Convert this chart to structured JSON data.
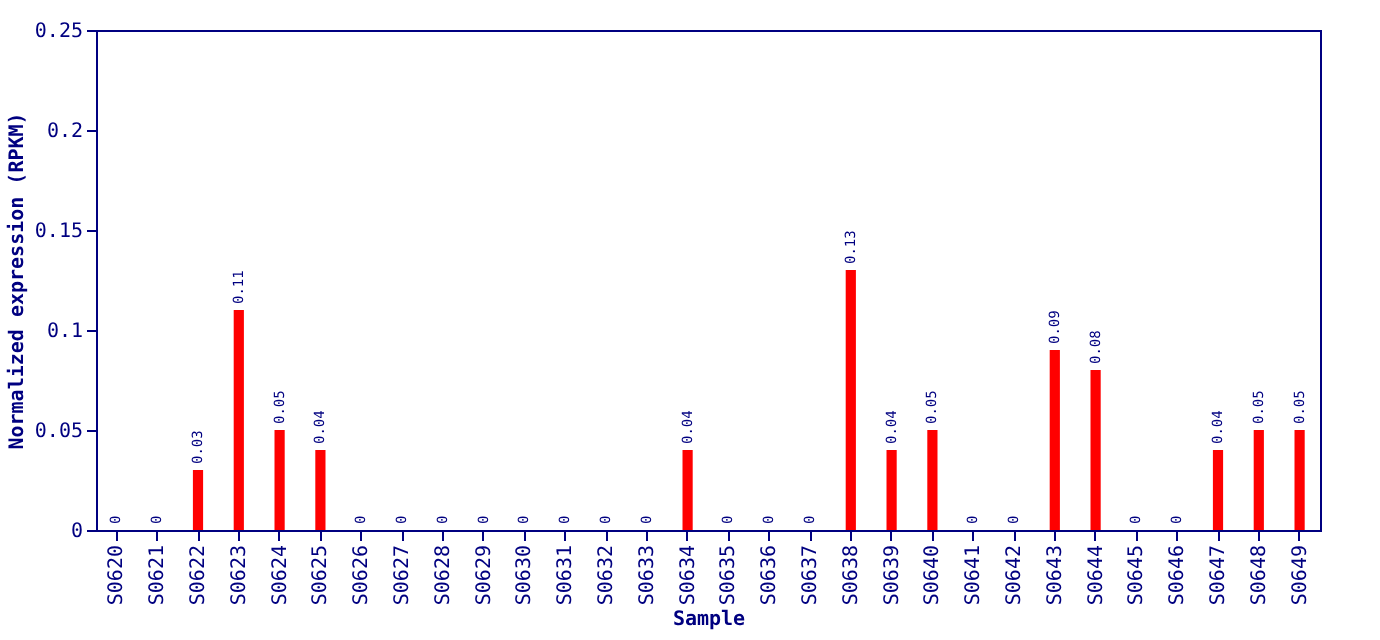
{
  "chart_data": {
    "type": "bar",
    "xlabel": "Sample",
    "ylabel": "Normalized expression (RPKM)",
    "categories": [
      "S0620",
      "S0621",
      "S0622",
      "S0623",
      "S0624",
      "S0625",
      "S0626",
      "S0627",
      "S0628",
      "S0629",
      "S0630",
      "S0631",
      "S0632",
      "S0633",
      "S0634",
      "S0635",
      "S0636",
      "S0637",
      "S0638",
      "S0639",
      "S0640",
      "S0641",
      "S0642",
      "S0643",
      "S0644",
      "S0645",
      "S0646",
      "S0647",
      "S0648",
      "S0649"
    ],
    "values": [
      0,
      0,
      0.03,
      0.11,
      0.05,
      0.04,
      0,
      0,
      0,
      0,
      0,
      0,
      0,
      0,
      0.04,
      0,
      0,
      0,
      0.13,
      0.04,
      0.05,
      0,
      0,
      0.09,
      0.08,
      0,
      0,
      0.04,
      0.05,
      0.05
    ],
    "color": "#ff0000",
    "ylim": [
      0,
      0.25
    ],
    "yticks": [
      0,
      0.05,
      0.1,
      0.15,
      0.2,
      0.25
    ],
    "data_labels": true,
    "grid": false
  }
}
